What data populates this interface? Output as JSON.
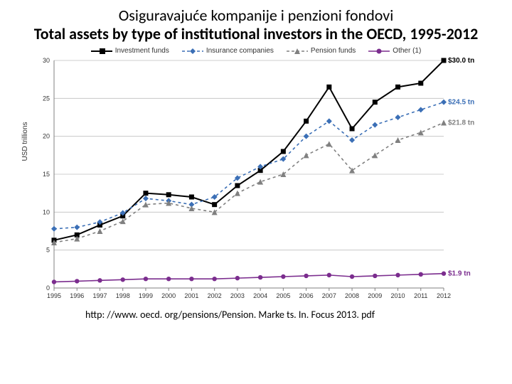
{
  "titles": {
    "line1": "Osiguravajuće kompanije i penzioni fondovi",
    "line2": "Total assets by type of institutional investors in the OECD, 1995-2012"
  },
  "footer": "http: //www. oecd. org/pensions/Pension. Marke ts. In. Focus 2013. pdf",
  "chart": {
    "type": "line",
    "ylabel": "USD trillions",
    "ylim": [
      0,
      30
    ],
    "ytick_step": 5,
    "xlim": [
      1995,
      2012
    ],
    "xticks": [
      1995,
      1996,
      1997,
      1998,
      1999,
      2000,
      2001,
      2002,
      2003,
      2004,
      2005,
      2006,
      2007,
      2008,
      2009,
      2010,
      2011,
      2012
    ],
    "background_color": "#ffffff",
    "grid_color": "#bfbfbf",
    "axis_color": "#808080",
    "tick_font_size": 9,
    "legend": {
      "items": [
        {
          "label": "Investment funds",
          "color": "#000000",
          "marker": "square",
          "dash": "none"
        },
        {
          "label": "Insurance companies",
          "color": "#3b6fb6",
          "marker": "diamond",
          "dash": "4,4"
        },
        {
          "label": "Pension funds",
          "color": "#808080",
          "marker": "triangle",
          "dash": "4,4"
        },
        {
          "label": "Other (1)",
          "color": "#7b2d8e",
          "marker": "circle",
          "dash": "none"
        }
      ]
    },
    "end_labels": [
      {
        "text": "$30.0 tn",
        "y": 30.0,
        "color": "#000000"
      },
      {
        "text": "$24.5 tn",
        "y": 24.5,
        "color": "#3b6fb6"
      },
      {
        "text": "$21.8 tn",
        "y": 21.8,
        "color": "#808080"
      },
      {
        "text": "$1.9 tn",
        "y": 1.9,
        "color": "#7b2d8e"
      }
    ],
    "series": [
      {
        "name": "investment",
        "color": "#000000",
        "marker": "square",
        "dash": "none",
        "line_width": 2,
        "values": [
          6.3,
          7.0,
          8.3,
          9.5,
          12.5,
          12.3,
          12.0,
          11.0,
          13.5,
          15.5,
          18.0,
          22.0,
          26.5,
          21.0,
          24.5,
          26.5,
          27.0,
          30.0
        ]
      },
      {
        "name": "insurance",
        "color": "#3b6fb6",
        "marker": "diamond",
        "dash": "4,4",
        "line_width": 1.6,
        "values": [
          7.8,
          8.0,
          8.7,
          9.9,
          11.8,
          11.5,
          11.0,
          12.0,
          14.5,
          16.0,
          17.0,
          20.0,
          22.0,
          19.5,
          21.5,
          22.5,
          23.5,
          24.5
        ]
      },
      {
        "name": "pension",
        "color": "#808080",
        "marker": "triangle",
        "dash": "4,4",
        "line_width": 1.6,
        "values": [
          6.0,
          6.5,
          7.5,
          8.8,
          11.0,
          11.2,
          10.5,
          10.0,
          12.5,
          14.0,
          15.0,
          17.5,
          19.0,
          15.5,
          17.5,
          19.5,
          20.5,
          21.8
        ]
      },
      {
        "name": "other",
        "color": "#7b2d8e",
        "marker": "circle",
        "dash": "none",
        "line_width": 1.6,
        "values": [
          0.8,
          0.9,
          1.0,
          1.1,
          1.2,
          1.2,
          1.2,
          1.2,
          1.3,
          1.4,
          1.5,
          1.6,
          1.7,
          1.5,
          1.6,
          1.7,
          1.8,
          1.9
        ]
      }
    ]
  }
}
